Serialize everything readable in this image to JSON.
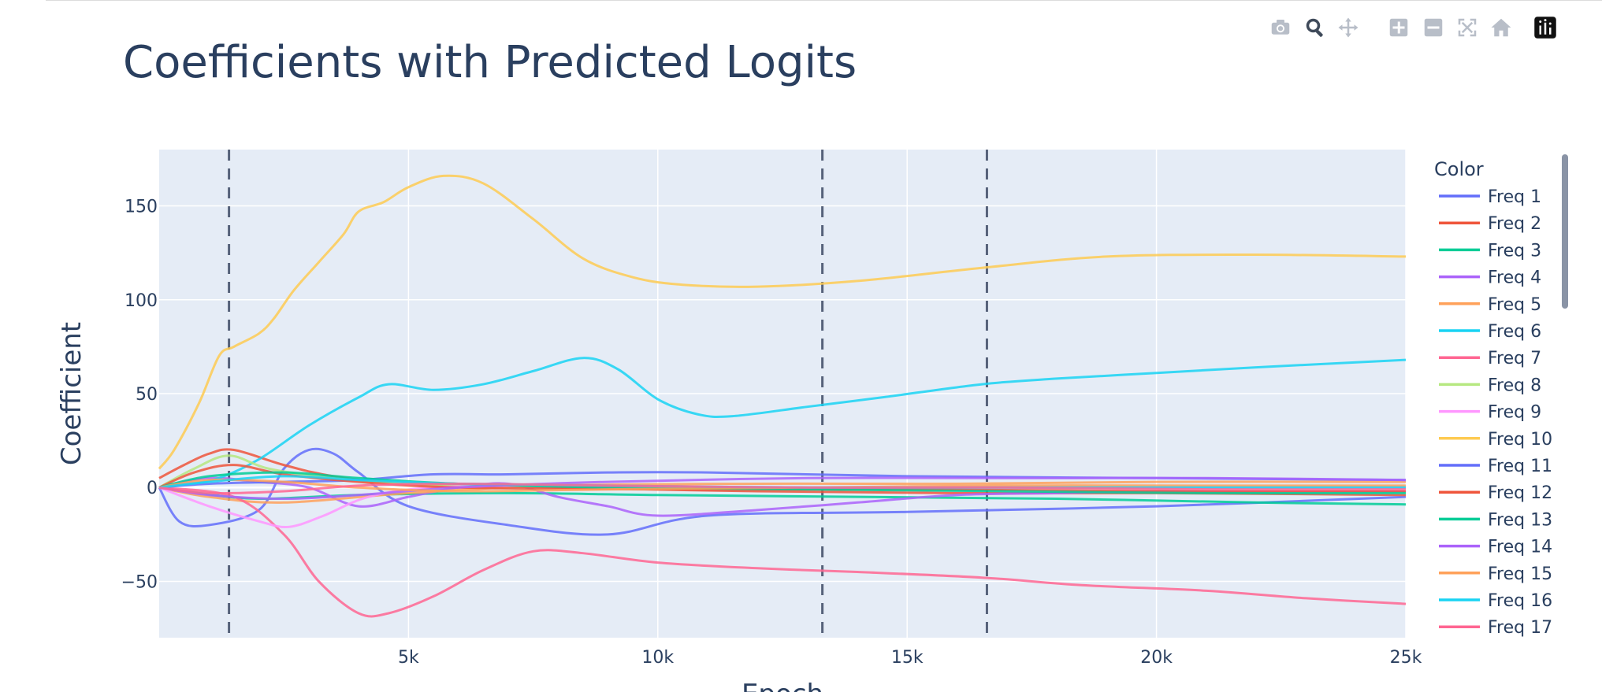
{
  "modebar": {
    "buttons": [
      {
        "name": "camera-icon"
      },
      {
        "name": "zoom-icon"
      },
      {
        "name": "pan-icon"
      },
      {
        "name": "zoom-in-icon"
      },
      {
        "name": "zoom-out-icon"
      },
      {
        "name": "autoscale-icon"
      },
      {
        "name": "reset-axes-icon"
      },
      {
        "name": "plotly-logo-icon"
      }
    ]
  },
  "chart_data": {
    "type": "line",
    "title": "Coefficients with Predicted Logits",
    "xlabel": "Epoch",
    "ylabel": "Coefficient",
    "xlim": [
      0,
      25000
    ],
    "ylim": [
      -80,
      180
    ],
    "xticks": [
      5000,
      10000,
      15000,
      20000,
      25000
    ],
    "xtick_labels": [
      "5k",
      "10k",
      "15k",
      "20k",
      "25k"
    ],
    "yticks": [
      -50,
      0,
      50,
      100,
      150
    ],
    "ytick_labels": [
      "−50",
      "0",
      "50",
      "100",
      "150"
    ],
    "vlines": [
      1400,
      13300,
      16600
    ],
    "grid": true,
    "legend": {
      "title": "Color",
      "placement": "right"
    },
    "series": [
      {
        "name": "Freq 1",
        "color": "#636efa",
        "x": [
          0,
          400,
          1000,
          2000,
          2500,
          3000,
          3500,
          4000,
          5000,
          7000,
          9000,
          11000,
          15000,
          20000,
          25000
        ],
        "y": [
          0,
          -18,
          -20,
          -12,
          10,
          20,
          18,
          8,
          -10,
          -20,
          -25,
          -15,
          -13,
          -10,
          -5
        ]
      },
      {
        "name": "Freq 2",
        "color": "#EF553B",
        "x": [
          0,
          500,
          1000,
          1500,
          2500,
          3500,
          5000,
          8000,
          12000,
          16000,
          20000,
          25000
        ],
        "y": [
          5,
          12,
          18,
          20,
          12,
          6,
          2,
          0,
          -2,
          -3,
          -3,
          -4
        ]
      },
      {
        "name": "Freq 3",
        "color": "#00cc96",
        "x": [
          0,
          800,
          2000,
          4000,
          7000,
          10000,
          14000,
          18000,
          22000,
          25000
        ],
        "y": [
          0,
          -3,
          -6,
          -4,
          -3,
          -4,
          -5,
          -6,
          -8,
          -9
        ]
      },
      {
        "name": "Freq 4",
        "color": "#ab63fa",
        "x": [
          0,
          1000,
          2000,
          3000,
          4000,
          5000,
          6000,
          7000,
          8000,
          9000,
          10000,
          12000,
          14000,
          16000,
          18000,
          20000,
          25000
        ],
        "y": [
          0,
          5,
          3,
          0,
          -10,
          -5,
          0,
          2,
          -5,
          -10,
          -15,
          -12,
          -8,
          -4,
          -3,
          -2,
          -2
        ]
      },
      {
        "name": "Freq 5",
        "color": "#FFA15A",
        "x": [
          0,
          1000,
          2500,
          5000,
          8000,
          12000,
          16000,
          20000,
          25000
        ],
        "y": [
          0,
          -5,
          -8,
          -3,
          1,
          2,
          2,
          3,
          3
        ]
      },
      {
        "name": "Freq 6",
        "color": "#19d3f3",
        "x": [
          0,
          600,
          1200,
          2000,
          3000,
          4000,
          4600,
          5500,
          6500,
          7500,
          8500,
          9200,
          10000,
          10800,
          11500,
          13000,
          14500,
          16500,
          18000,
          20000,
          22000,
          25000
        ],
        "y": [
          0,
          2,
          5,
          15,
          33,
          48,
          55,
          52,
          55,
          62,
          69,
          63,
          47,
          39,
          38,
          43,
          48,
          55,
          58,
          61,
          64,
          68
        ]
      },
      {
        "name": "Freq 7",
        "color": "#FF6692",
        "x": [
          0,
          1500,
          2500,
          3200,
          4000,
          4600,
          5500,
          6500,
          7500,
          8500,
          10000,
          12000,
          14000,
          16500,
          18500,
          21000,
          23000,
          25000
        ],
        "y": [
          0,
          -5,
          -25,
          -50,
          -67,
          -67,
          -58,
          -44,
          -34,
          -35,
          -40,
          -43,
          -45,
          -48,
          -52,
          -55,
          -59,
          -62
        ]
      },
      {
        "name": "Freq 8",
        "color": "#B6E880",
        "x": [
          0,
          700,
          1400,
          2200,
          3500,
          5000,
          8000,
          12000,
          18000,
          25000
        ],
        "y": [
          0,
          10,
          17,
          10,
          5,
          2,
          1,
          0,
          0,
          0
        ]
      },
      {
        "name": "Freq 9",
        "color": "#FF97FF",
        "x": [
          0,
          1000,
          2000,
          2600,
          3300,
          4200,
          5500,
          8000,
          12000,
          18000,
          25000
        ],
        "y": [
          0,
          -10,
          -18,
          -21,
          -15,
          -5,
          0,
          1,
          0,
          0,
          0
        ]
      },
      {
        "name": "Freq 10",
        "color": "#FECB52",
        "x": [
          0,
          300,
          800,
          1200,
          1500,
          2000,
          2300,
          2700,
          3200,
          3700,
          4000,
          4500,
          5000,
          5700,
          6500,
          7500,
          8500,
          9500,
          10500,
          12000,
          14000,
          16500,
          19000,
          22000,
          25000
        ],
        "y": [
          10,
          20,
          45,
          70,
          75,
          82,
          90,
          105,
          120,
          135,
          147,
          152,
          160,
          166,
          162,
          143,
          122,
          112,
          108,
          107,
          110,
          117,
          123,
          124,
          123
        ]
      },
      {
        "name": "Freq 11",
        "color": "#636efa",
        "x": [
          0,
          1000,
          2500,
          4000,
          5500,
          7000,
          9000,
          11000,
          15000,
          20000,
          25000
        ],
        "y": [
          0,
          2,
          3,
          4,
          7,
          7,
          8,
          8,
          6,
          5,
          4
        ]
      },
      {
        "name": "Freq 12",
        "color": "#EF553B",
        "x": [
          0,
          700,
          1500,
          2500,
          4000,
          6000,
          10000,
          15000,
          20000,
          25000
        ],
        "y": [
          0,
          8,
          12,
          7,
          3,
          0,
          -1,
          -1,
          -2,
          -2
        ]
      },
      {
        "name": "Freq 13",
        "color": "#00cc96",
        "x": [
          0,
          1000,
          2500,
          4000,
          6000,
          9000,
          13000,
          17000,
          21000,
          25000
        ],
        "y": [
          0,
          6,
          8,
          5,
          2,
          0,
          -1,
          -2,
          -3,
          -3
        ]
      },
      {
        "name": "Freq 14",
        "color": "#ab63fa",
        "x": [
          0,
          1000,
          2500,
          4000,
          6000,
          9000,
          13000,
          17000,
          21000,
          25000
        ],
        "y": [
          0,
          -4,
          -6,
          -4,
          0,
          3,
          5,
          5,
          5,
          4
        ]
      },
      {
        "name": "Freq 15",
        "color": "#FFA15A",
        "x": [
          0,
          1000,
          2500,
          4000,
          6000,
          9000,
          13000,
          17000,
          21000,
          25000
        ],
        "y": [
          0,
          4,
          3,
          0,
          -2,
          -1,
          0,
          1,
          1,
          1
        ]
      },
      {
        "name": "Freq 16",
        "color": "#19d3f3",
        "x": [
          0,
          1000,
          2500,
          4000,
          6000,
          9000,
          13000,
          17000,
          21000,
          25000
        ],
        "y": [
          0,
          3,
          6,
          4,
          2,
          1,
          0,
          0,
          0,
          0
        ]
      },
      {
        "name": "Freq 17",
        "color": "#FF6692",
        "x": [
          0,
          1000,
          2500,
          4000,
          6000,
          9000,
          13000,
          17000,
          21000,
          25000
        ],
        "y": [
          0,
          -3,
          -2,
          1,
          2,
          1,
          0,
          0,
          -1,
          -1
        ]
      }
    ]
  }
}
